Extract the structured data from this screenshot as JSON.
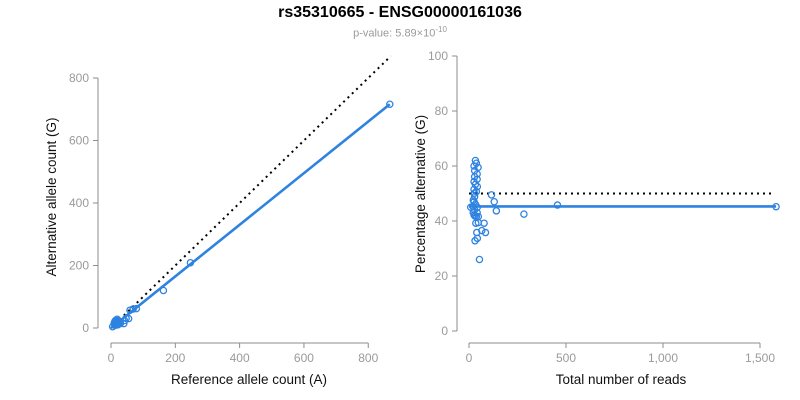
{
  "title": "rs35310665 - ENSG00000161036",
  "subtitle": {
    "prefix": "p-value: 5.89×10",
    "exponent": "-10"
  },
  "colors": {
    "accent": "#2E82E0",
    "identity_line": "#000000",
    "axis": "#8C8C8C",
    "tick_label": "#9a9a9a",
    "axis_title": "#111111",
    "subtitle": "#9a9a9a",
    "background": "#ffffff"
  },
  "chart_data": [
    {
      "name": "allele-counts-panel",
      "type": "scatter",
      "xlabel": "Reference allele count (A)",
      "ylabel": "Alternative allele count (G)",
      "xlim": [
        0,
        870
      ],
      "ylim": [
        0,
        880
      ],
      "grid": false,
      "legend": "none",
      "xticks": [
        {
          "v": 0,
          "label": "0"
        },
        {
          "v": 200,
          "label": "200"
        },
        {
          "v": 400,
          "label": "400"
        },
        {
          "v": 600,
          "label": "600"
        },
        {
          "v": 800,
          "label": "800"
        }
      ],
      "yticks": [
        {
          "v": 0,
          "label": "0"
        },
        {
          "v": 200,
          "label": "200"
        },
        {
          "v": 400,
          "label": "400"
        },
        {
          "v": 600,
          "label": "600"
        },
        {
          "v": 800,
          "label": "800"
        }
      ],
      "lines": [
        {
          "name": "identity-line",
          "style": "dotted",
          "color": "#000000",
          "from": [
            0,
            0
          ],
          "to": [
            870,
            870
          ]
        },
        {
          "name": "fit-line",
          "style": "solid",
          "color": "#2E82E0",
          "from": [
            0,
            0
          ],
          "to": [
            867,
            716
          ]
        }
      ],
      "points": [
        [
          5,
          4
        ],
        [
          12,
          9
        ],
        [
          12,
          10
        ],
        [
          13,
          9
        ],
        [
          10,
          16
        ],
        [
          12,
          14
        ],
        [
          13,
          13
        ],
        [
          14,
          12
        ],
        [
          15,
          11
        ],
        [
          14,
          14
        ],
        [
          12,
          17
        ],
        [
          13,
          16
        ],
        [
          15,
          14
        ],
        [
          16,
          13
        ],
        [
          18,
          13
        ],
        [
          21,
          10
        ],
        [
          12,
          21
        ],
        [
          15,
          18
        ],
        [
          18,
          15
        ],
        [
          21,
          14
        ],
        [
          14,
          24
        ],
        [
          19,
          19
        ],
        [
          22,
          16
        ],
        [
          26,
          14
        ],
        [
          18,
          24
        ],
        [
          19,
          23
        ],
        [
          24,
          18
        ],
        [
          20,
          23
        ],
        [
          24,
          19
        ],
        [
          29,
          14
        ],
        [
          19,
          28
        ],
        [
          28,
          20
        ],
        [
          29,
          19
        ],
        [
          40,
          14
        ],
        [
          42,
          24
        ],
        [
          47,
          31
        ],
        [
          55,
          30
        ],
        [
          59,
          57
        ],
        [
          69,
          61
        ],
        [
          79,
          62
        ],
        [
          163,
          120
        ],
        [
          247,
          209
        ],
        [
          867,
          716
        ]
      ]
    },
    {
      "name": "percentage-panel",
      "type": "scatter",
      "xlabel": "Total number of reads",
      "ylabel": "Percentage alternative (G)",
      "xlim": [
        0,
        1600
      ],
      "ylim": [
        0,
        100
      ],
      "grid": false,
      "legend": "none",
      "xticks": [
        {
          "v": 0,
          "label": "0"
        },
        {
          "v": 500,
          "label": "500"
        },
        {
          "v": 1000,
          "label": "1,000"
        },
        {
          "v": 1500,
          "label": "1,500"
        }
      ],
      "yticks": [
        {
          "v": 0,
          "label": "0"
        },
        {
          "v": 20,
          "label": "20"
        },
        {
          "v": 40,
          "label": "40"
        },
        {
          "v": 60,
          "label": "60"
        },
        {
          "v": 80,
          "label": "80"
        },
        {
          "v": 100,
          "label": "100"
        }
      ],
      "lines": [
        {
          "name": "expected-50pct-line",
          "style": "dotted",
          "color": "#000000",
          "from": [
            0,
            50
          ],
          "to": [
            1560,
            50
          ]
        },
        {
          "name": "fit-line",
          "style": "solid",
          "color": "#2E82E0",
          "from": [
            0,
            45.3
          ],
          "to": [
            1583,
            45.3
          ]
        }
      ],
      "points": [
        [
          9,
          45
        ],
        [
          21,
          45.2
        ],
        [
          22,
          47.6
        ],
        [
          22,
          43
        ],
        [
          26,
          60
        ],
        [
          26,
          54.3
        ],
        [
          26,
          51.5
        ],
        [
          26,
          47
        ],
        [
          26,
          42.2
        ],
        [
          28,
          50.1
        ],
        [
          29,
          58.3
        ],
        [
          29,
          56.1
        ],
        [
          29,
          48.8
        ],
        [
          29,
          44
        ],
        [
          31,
          41.8
        ],
        [
          31,
          32.8
        ],
        [
          33,
          62
        ],
        [
          33,
          53.3
        ],
        [
          33,
          46.1
        ],
        [
          35,
          39.2
        ],
        [
          38,
          61
        ],
        [
          38,
          50.7
        ],
        [
          38,
          41.6
        ],
        [
          40,
          35.8
        ],
        [
          42,
          57.1
        ],
        [
          42,
          55.2
        ],
        [
          42,
          43
        ],
        [
          43,
          52.5
        ],
        [
          43,
          45
        ],
        [
          43,
          33.7
        ],
        [
          47,
          59.5
        ],
        [
          48,
          41.6
        ],
        [
          48,
          39.4
        ],
        [
          54,
          26
        ],
        [
          66,
          36.5
        ],
        [
          78,
          39.2
        ],
        [
          85,
          35.8
        ],
        [
          116,
          49.5
        ],
        [
          130,
          47
        ],
        [
          141,
          43.7
        ],
        [
          283,
          42.5
        ],
        [
          456,
          45.8
        ],
        [
          1583,
          45.2
        ]
      ]
    }
  ]
}
